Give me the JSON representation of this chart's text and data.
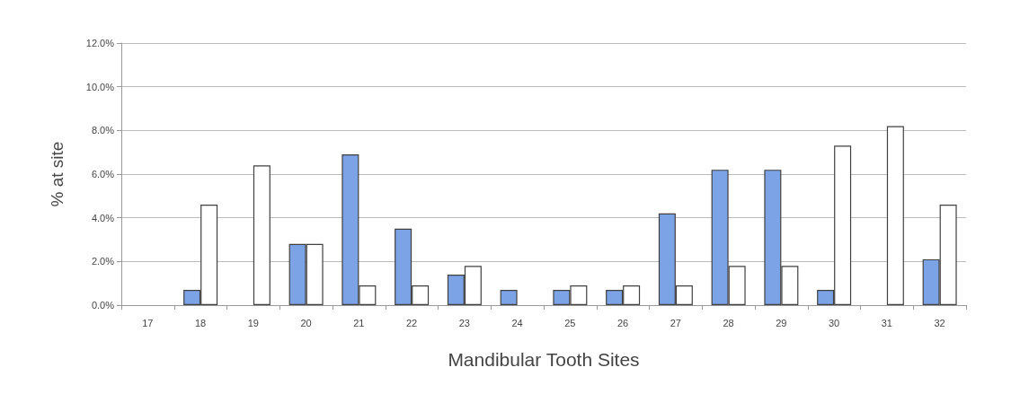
{
  "chart_data": {
    "type": "bar",
    "xlabel": "Mandibular Tooth Sites",
    "ylabel": "% at site",
    "categories": [
      "17",
      "18",
      "19",
      "20",
      "21",
      "22",
      "23",
      "24",
      "25",
      "26",
      "27",
      "28",
      "29",
      "30",
      "31",
      "32"
    ],
    "series": [
      {
        "color": "#7ba3e6",
        "values": [
          null,
          0.7,
          null,
          2.8,
          6.9,
          3.5,
          1.4,
          0.7,
          0.7,
          0.7,
          4.2,
          6.2,
          6.2,
          0.7,
          null,
          2.1
        ]
      },
      {
        "color": "#ffffff",
        "values": [
          null,
          4.6,
          6.4,
          2.8,
          0.9,
          0.9,
          1.8,
          null,
          0.9,
          0.9,
          0.9,
          1.8,
          1.8,
          7.3,
          8.2,
          4.6
        ]
      }
    ],
    "ylim": [
      0,
      12
    ],
    "yticks": [
      {
        "value": 0,
        "label": "0.0%"
      },
      {
        "value": 2,
        "label": "2.0%"
      },
      {
        "value": 4,
        "label": "4.0%"
      },
      {
        "value": 6,
        "label": "6.0%"
      },
      {
        "value": 8,
        "label": "8.0%"
      },
      {
        "value": 10,
        "label": "10.0%"
      },
      {
        "value": 12,
        "label": "12.0%"
      }
    ],
    "grid": "y"
  }
}
